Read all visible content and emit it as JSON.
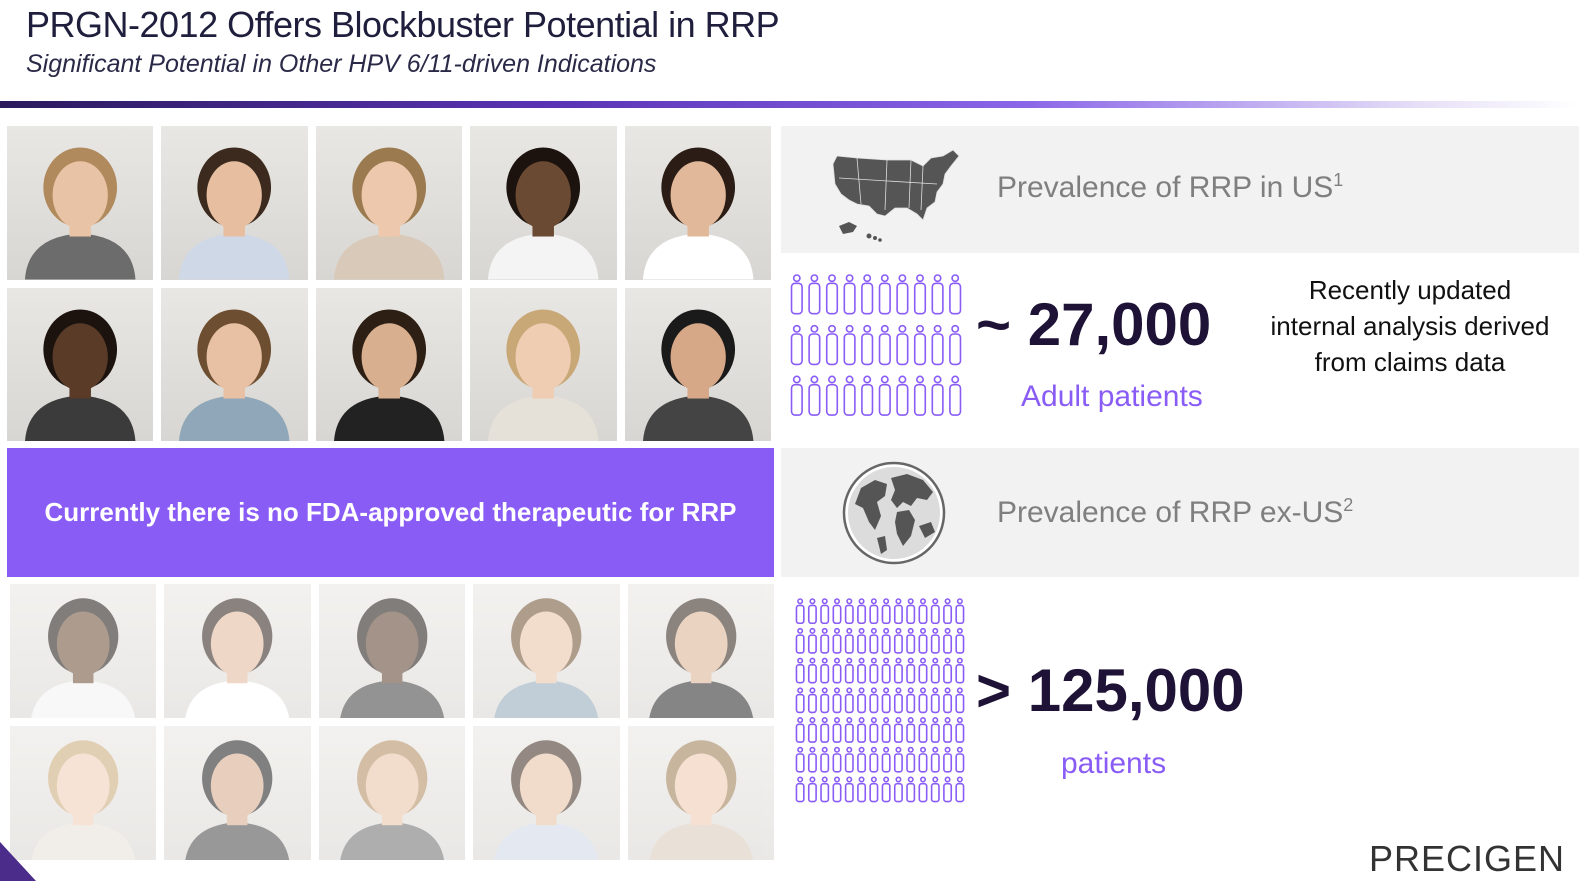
{
  "header": {
    "title": "PRGN-2012 Offers Blockbuster Potential in RRP",
    "subtitle": "Significant Potential in Other HPV 6/11-driven Indications"
  },
  "banner": {
    "text": "Currently there is no FDA-approved therapeutic for RRP"
  },
  "us": {
    "label": "Prevalence of RRP in US",
    "footnote": "1",
    "value": "~ 27,000",
    "unit": "Adult patients",
    "note": "Recently updated internal analysis derived from claims data"
  },
  "exus": {
    "label": "Prevalence of RRP ex-US",
    "footnote": "2",
    "value": "> 125,000",
    "unit": "patients"
  },
  "brand": {
    "name": "PRECIGEN"
  },
  "colors": {
    "accent": "#8a5cf6",
    "dark": "#1e1236",
    "band": "#f2f2f2"
  },
  "icons": [
    "us-map-icon",
    "globe-icon",
    "people-icon"
  ]
}
